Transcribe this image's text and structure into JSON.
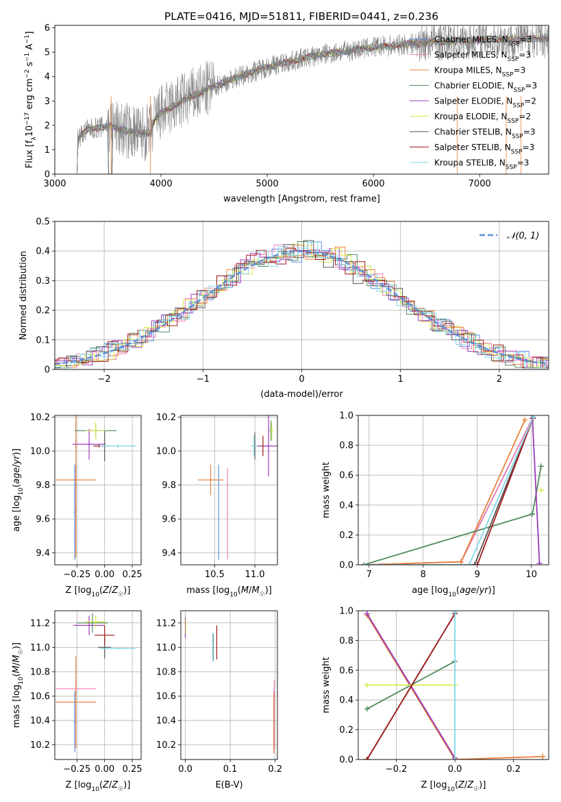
{
  "figure_title": "PLATE=0416, MJD=51811, FIBERID=0441, z=0.236",
  "colors": {
    "Chabrier MILES": "#5b8ee3",
    "Salpeter MILES": "#f07eb8",
    "Kroupa MILES": "#e8823a",
    "Chabrier ELODIE": "#4f8a5a",
    "Salpeter ELODIE": "#9b3ab8",
    "Kroupa ELODIE": "#d8e84a",
    "Chabrier STELIB": "#555555",
    "Salpeter STELIB": "#a01818",
    "Kroupa STELIB": "#7fd8e6",
    "gauss": "#5b8fd6",
    "data": "#808080"
  },
  "chart_data": [
    {
      "id": "spectrum",
      "type": "line",
      "title": "PLATE=0416, MJD=51811, FIBERID=0441, z=0.236",
      "xlabel": "wavelength [Angstrom, rest frame]",
      "ylabel": "Flux [f_λ10^-17 erg cm^-2 s^-1 A^-1]",
      "xlim": [
        3000,
        7650
      ],
      "ylim": [
        0,
        6.1
      ],
      "xticks": [
        3000,
        4000,
        5000,
        6000,
        7000
      ],
      "yticks": [
        0,
        1,
        2,
        3,
        4,
        5,
        6
      ],
      "grid": false,
      "legend_position": "right",
      "legend": [
        {
          "name": "Chabrier MILES",
          "sub": "SSP",
          "n": "3"
        },
        {
          "name": "Salpeter MILES",
          "sub": "SSP",
          "n": "3"
        },
        {
          "name": "Kroupa MILES",
          "sub": "SSP",
          "n": "3"
        },
        {
          "name": "Chabrier ELODIE",
          "sub": "SSP",
          "n": "3"
        },
        {
          "name": "Salpeter ELODIE",
          "sub": "SSP",
          "n": "2"
        },
        {
          "name": "Kroupa ELODIE",
          "sub": "SSP",
          "n": "2"
        },
        {
          "name": "Chabrier STELIB",
          "sub": "SSP",
          "n": "3"
        },
        {
          "name": "Salpeter STELIB",
          "sub": "SSP",
          "n": "3"
        },
        {
          "name": "Kroupa STELIB",
          "sub": "SSP",
          "n": "3"
        }
      ],
      "continuum": [
        [
          3210,
          0
        ],
        [
          3215,
          1.45
        ],
        [
          3300,
          1.8
        ],
        [
          3500,
          2.0
        ],
        [
          3600,
          1.85
        ],
        [
          3700,
          1.75
        ],
        [
          3800,
          1.65
        ],
        [
          3900,
          1.7
        ],
        [
          3950,
          2.3
        ],
        [
          4000,
          2.5
        ],
        [
          4200,
          3.0
        ],
        [
          4500,
          3.6
        ],
        [
          4800,
          4.1
        ],
        [
          5000,
          4.4
        ],
        [
          5200,
          4.6
        ],
        [
          5500,
          4.9
        ],
        [
          6000,
          5.2
        ],
        [
          6500,
          5.4
        ],
        [
          7000,
          5.5
        ],
        [
          7500,
          5.55
        ],
        [
          7650,
          5.55
        ]
      ]
    },
    {
      "id": "residuals",
      "type": "area",
      "xlabel": "(data-model)/error",
      "ylabel": "Normed distribution",
      "xlim": [
        -2.5,
        2.5
      ],
      "ylim": [
        0,
        0.5
      ],
      "xticks": [
        -2,
        -1,
        0,
        1,
        2
      ],
      "yticks": [
        0,
        0.1,
        0.2,
        0.3,
        0.4,
        0.5
      ],
      "grid": true,
      "legend_position": "top-right",
      "legend": [
        {
          "name": "𝒩(0, 1)"
        }
      ],
      "reference_curve": "N(0,1)"
    },
    {
      "id": "age-vs-Z",
      "type": "scatter",
      "xlabel": "Z [log10(Z/Z☉)]",
      "ylabel": "age  [log10(age/yr)]",
      "xlim": [
        -0.45,
        0.33
      ],
      "ylim": [
        9.33,
        10.21
      ],
      "xticks": [
        -0.25,
        0,
        0.25
      ],
      "xticklabels": [
        "−0.25",
        "0.00",
        "0.25"
      ],
      "yticks": [
        9.4,
        9.6,
        9.8,
        10.0,
        10.2
      ],
      "yticklabels": [
        "9.4",
        "9.6",
        "9.8",
        "10.0",
        "10.2"
      ],
      "grid": true,
      "points": [
        {
          "s": "Chabrier MILES",
          "x": -0.27,
          "y": 9.64,
          "xerr": 0.01,
          "yerr": 0.28
        },
        {
          "s": "Salpeter MILES",
          "x": -0.26,
          "y": 9.66,
          "xerr": 0.01,
          "yerr": 0.26
        },
        {
          "s": "Kroupa MILES",
          "x": -0.26,
          "y": 9.83,
          "xerr": 0.18,
          "yerr": 0.46
        },
        {
          "s": "Chabrier ELODIE",
          "x": -0.08,
          "y": 10.12,
          "xerr": 0.19,
          "yerr": 0.04
        },
        {
          "s": "Salpeter ELODIE",
          "x": -0.14,
          "y": 10.04,
          "xerr": 0.15,
          "yerr": 0.09
        },
        {
          "s": "Kroupa ELODIE",
          "x": -0.08,
          "y": 10.12,
          "xerr": 0.09,
          "yerr": 0.05
        },
        {
          "s": "Chabrier STELIB",
          "x": 0.0,
          "y": 10.03,
          "xerr": 0.04,
          "yerr": 0.09
        },
        {
          "s": "Salpeter STELIB",
          "x": -0.05,
          "y": 10.03,
          "xerr": 0.05,
          "yerr": 0.01
        },
        {
          "s": "Kroupa STELIB",
          "x": 0.12,
          "y": 10.03,
          "xerr": 0.17,
          "yerr": 0.01
        }
      ]
    },
    {
      "id": "age-vs-mass",
      "type": "scatter",
      "xlabel": "mass [log10(M/M☉)]",
      "ylabel": "",
      "xlim": [
        10.08,
        11.28
      ],
      "ylim": [
        9.33,
        10.21
      ],
      "xticks": [
        10.5,
        11.0
      ],
      "xticklabels": [
        "10.5",
        "11.0"
      ],
      "yticks": [
        9.4,
        9.6,
        9.8,
        10.0,
        10.2
      ],
      "yticklabels": [
        "9.4",
        "9.6",
        "9.8",
        "10.0",
        "10.2"
      ],
      "grid": true,
      "points": [
        {
          "s": "Chabrier MILES",
          "x": 10.55,
          "y": 9.64,
          "xerr": 0.005,
          "yerr": 0.28
        },
        {
          "s": "Salpeter MILES",
          "x": 10.66,
          "y": 9.63,
          "xerr": 0.005,
          "yerr": 0.27
        },
        {
          "s": "Kroupa MILES",
          "x": 10.45,
          "y": 9.83,
          "xerr": 0.16,
          "yerr": 0.09
        },
        {
          "s": "Chabrier ELODIE",
          "x": 11.2,
          "y": 10.12,
          "xerr": 0.02,
          "yerr": 0.06
        },
        {
          "s": "Salpeter ELODIE",
          "x": 11.17,
          "y": 10.03,
          "xerr": 0.14,
          "yerr": 0.18
        },
        {
          "s": "Kroupa ELODIE",
          "x": 11.21,
          "y": 10.12,
          "xerr": 0.02,
          "yerr": 0.05
        },
        {
          "s": "Chabrier STELIB",
          "x": 11.0,
          "y": 10.03,
          "xerr": 0.01,
          "yerr": 0.08
        },
        {
          "s": "Salpeter STELIB",
          "x": 11.1,
          "y": 10.03,
          "xerr": 0.01,
          "yerr": 0.06
        },
        {
          "s": "Kroupa STELIB",
          "x": 10.99,
          "y": 10.03,
          "xerr": 0.04,
          "yerr": 0.06
        }
      ]
    },
    {
      "id": "weight-vs-age",
      "type": "line",
      "xlabel": "age  [log10(age/yr)]",
      "ylabel": "mass weight",
      "xlim": [
        6.8,
        10.32
      ],
      "ylim": [
        0,
        1.0
      ],
      "xticks": [
        7,
        8,
        9,
        10
      ],
      "xticklabels": [
        "7",
        "8",
        "9",
        "10"
      ],
      "yticks": [
        0,
        0.2,
        0.4,
        0.6,
        0.8,
        1.0
      ],
      "yticklabels": [
        "0.0",
        "0.2",
        "0.4",
        "0.6",
        "0.8",
        "1.0"
      ],
      "grid": true,
      "series": [
        {
          "s": "Chabrier MILES",
          "x": [
            6.9,
            8.7,
            10.02
          ],
          "y": [
            0.0,
            0.02,
            0.98
          ]
        },
        {
          "s": "Salpeter MILES",
          "x": [
            6.9,
            8.7,
            10.02
          ],
          "y": [
            0.0,
            0.02,
            0.98
          ]
        },
        {
          "s": "Kroupa MILES",
          "x": [
            6.9,
            8.7,
            9.88
          ],
          "y": [
            0.0,
            0.02,
            0.97
          ]
        },
        {
          "s": "Chabrier ELODIE",
          "x": [
            6.9,
            10.02,
            10.18
          ],
          "y": [
            0.0,
            0.34,
            0.66
          ]
        },
        {
          "s": "Salpeter ELODIE",
          "x": [
            10.02,
            10.15
          ],
          "y": [
            0.98,
            0.01
          ]
        },
        {
          "s": "Kroupa ELODIE",
          "x": [
            10.18
          ],
          "y": [
            0.5
          ]
        },
        {
          "s": "Chabrier STELIB",
          "x": [
            8.95,
            10.03
          ],
          "y": [
            0.0,
            0.98
          ]
        },
        {
          "s": "Salpeter STELIB",
          "x": [
            6.9,
            9.0,
            10.03
          ],
          "y": [
            0.0,
            0.0,
            0.98
          ]
        },
        {
          "s": "Kroupa STELIB",
          "x": [
            6.9,
            8.85,
            10.04
          ],
          "y": [
            0.0,
            0.0,
            0.99
          ]
        }
      ]
    },
    {
      "id": "mass-vs-Z",
      "type": "scatter",
      "xlabel": "Z [log10(Z/Z☉)]",
      "ylabel": "mass [log10(M/M☉)]",
      "xlim": [
        -0.45,
        0.33
      ],
      "ylim": [
        10.08,
        11.3
      ],
      "xticks": [
        -0.25,
        0,
        0.25
      ],
      "xticklabels": [
        "−0.25",
        "0.00",
        "0.25"
      ],
      "yticks": [
        10.2,
        10.4,
        10.6,
        10.8,
        11.0,
        11.2
      ],
      "yticklabels": [
        "10.2",
        "10.4",
        "10.6",
        "10.8",
        "11.0",
        "11.2"
      ],
      "grid": true,
      "points": [
        {
          "s": "Chabrier MILES",
          "x": -0.27,
          "y": 10.39,
          "xerr": 0.01,
          "yerr": 0.25
        },
        {
          "s": "Salpeter MILES",
          "x": -0.26,
          "y": 10.66,
          "xerr": 0.18,
          "yerr": 0.07
        },
        {
          "s": "Kroupa MILES",
          "x": -0.26,
          "y": 10.55,
          "xerr": 0.18,
          "yerr": 0.38
        },
        {
          "s": "Chabrier ELODIE",
          "x": -0.11,
          "y": 11.2,
          "xerr": 0.14,
          "yerr": 0.08
        },
        {
          "s": "Salpeter ELODIE",
          "x": -0.14,
          "y": 11.18,
          "xerr": 0.14,
          "yerr": 0.08
        },
        {
          "s": "Kroupa ELODIE",
          "x": -0.08,
          "y": 11.21,
          "xerr": 0.09,
          "yerr": 0.05
        },
        {
          "s": "Chabrier STELIB",
          "x": 0.0,
          "y": 11.0,
          "xerr": 0.06,
          "yerr": 0.09
        },
        {
          "s": "Salpeter STELIB",
          "x": 0.0,
          "y": 11.1,
          "xerr": 0.09,
          "yerr": 0.08
        },
        {
          "s": "Kroupa STELIB",
          "x": 0.12,
          "y": 10.99,
          "xerr": 0.16,
          "yerr": 0.01
        }
      ]
    },
    {
      "id": "mass-vs-ebv",
      "type": "scatter",
      "xlabel": "E(B-V)",
      "ylabel": "",
      "xlim": [
        -0.01,
        0.205
      ],
      "ylim": [
        10.08,
        11.3
      ],
      "xticks": [
        0.0,
        0.1,
        0.2
      ],
      "xticklabels": [
        "0.0",
        "0.1",
        "0.2"
      ],
      "yticks": [
        10.2,
        10.4,
        10.6,
        10.8,
        11.0,
        11.2
      ],
      "yticklabels": [
        "10.2",
        "10.4",
        "10.6",
        "10.8",
        "11.0",
        "11.2"
      ],
      "grid": true,
      "points": [
        {
          "s": "Chabrier MILES",
          "x": 0.197,
          "y": 10.39,
          "xerr": 0.0,
          "yerr": 0.25
        },
        {
          "s": "Salpeter MILES",
          "x": 0.198,
          "y": 10.45,
          "xerr": 0.0,
          "yerr": 0.28
        },
        {
          "s": "Kroupa MILES",
          "x": 0.197,
          "y": 10.38,
          "xerr": 0.0,
          "yerr": 0.25
        },
        {
          "s": "Chabrier ELODIE",
          "x": 0.0,
          "y": 11.17,
          "xerr": 0.0,
          "yerr": 0.08
        },
        {
          "s": "Salpeter ELODIE",
          "x": 0.0,
          "y": 11.16,
          "xerr": 0.0,
          "yerr": 0.08
        },
        {
          "s": "Kroupa ELODIE",
          "x": 0.001,
          "y": 11.17,
          "xerr": 0.0,
          "yerr": 0.06
        },
        {
          "s": "Chabrier STELIB",
          "x": 0.062,
          "y": 11.0,
          "xerr": 0.0,
          "yerr": 0.11
        },
        {
          "s": "Salpeter STELIB",
          "x": 0.07,
          "y": 11.04,
          "xerr": 0.0,
          "yerr": 0.14
        },
        {
          "s": "Kroupa STELIB",
          "x": 0.061,
          "y": 11.0,
          "xerr": 0.0,
          "yerr": 0.12
        }
      ]
    },
    {
      "id": "weight-vs-Z",
      "type": "line",
      "xlabel": "Z [log10(Z/Z☉)]",
      "ylabel": "mass weight",
      "xlim": [
        -0.33,
        0.32
      ],
      "ylim": [
        0,
        1.0
      ],
      "xticks": [
        -0.2,
        0.0,
        0.2
      ],
      "xticklabels": [
        "−0.2",
        "0.0",
        "0.2"
      ],
      "yticks": [
        0,
        0.2,
        0.4,
        0.6,
        0.8,
        1.0
      ],
      "yticklabels": [
        "0.0",
        "0.2",
        "0.4",
        "0.6",
        "0.8",
        "1.0"
      ],
      "grid": true,
      "series": [
        {
          "s": "Chabrier MILES",
          "x": [
            -0.3,
            0.0
          ],
          "y": [
            0.98,
            0.01
          ]
        },
        {
          "s": "Salpeter MILES",
          "x": [
            -0.3,
            0.0
          ],
          "y": [
            0.98,
            0.01
          ]
        },
        {
          "s": "Kroupa MILES",
          "x": [
            -0.3,
            0.0,
            0.3
          ],
          "y": [
            0.97,
            0.0,
            0.02
          ]
        },
        {
          "s": "Chabrier ELODIE",
          "x": [
            -0.3,
            0.0
          ],
          "y": [
            0.34,
            0.66
          ]
        },
        {
          "s": "Salpeter ELODIE",
          "x": [
            -0.3,
            0.0
          ],
          "y": [
            0.98,
            0.01
          ]
        },
        {
          "s": "Kroupa ELODIE",
          "x": [
            -0.3,
            0.0
          ],
          "y": [
            0.5,
            0.5
          ]
        },
        {
          "s": "Chabrier STELIB",
          "x": [
            -0.3,
            0.0
          ],
          "y": [
            0.0,
            0.98
          ]
        },
        {
          "s": "Salpeter STELIB",
          "x": [
            -0.3,
            0.0
          ],
          "y": [
            0.0,
            0.98
          ]
        },
        {
          "s": "Kroupa STELIB",
          "x": [
            0.0,
            0.0
          ],
          "y": [
            0.0,
            0.99
          ]
        }
      ]
    }
  ]
}
